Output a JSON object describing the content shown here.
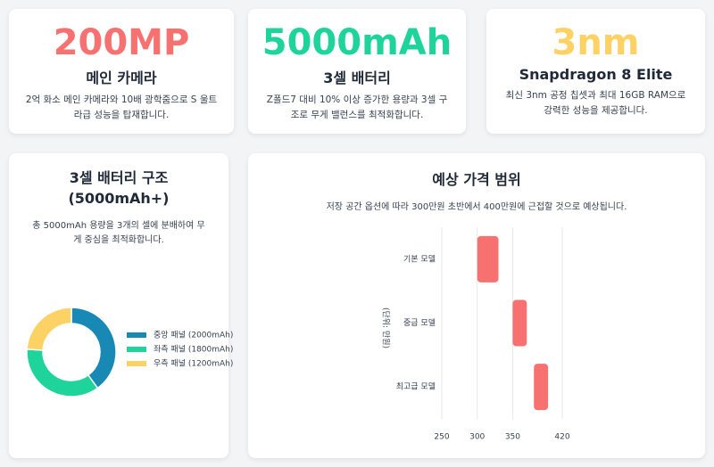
{
  "cards": [
    {
      "stat": "200MP",
      "title": "메인 카메라",
      "description": "2억 화소 메인 카메라와 10배 광학줌으로 S 울트라급 성능을 탑재합니다.",
      "color": "#f87171"
    },
    {
      "stat": "5000mAh",
      "title": "3셀 배터리",
      "description": "Z폴드7 대비 10% 이상 증가한 용량과 3셀 구조로 무게 밸런스를 최적화합니다.",
      "color": "#1ed49b"
    },
    {
      "stat": "3nm",
      "title": "Snapdragon 8 Elite",
      "description": "최신 3nm 공정 칩셋과 최대 16GB RAM으로 강력한 성능을 제공합니다.",
      "color": "#fcd265"
    }
  ],
  "chart_data": [
    {
      "type": "donut",
      "title": "3셀 배터리 구조 (5000mAh+)",
      "subtitle": "총 5000mAh 용량을 3개의 셀에 분배하여 무게 중심을 최적화합니다.",
      "categories": [
        "중앙 패널 (2000mAh)",
        "좌측 패널 (1800mAh)",
        "우측 패널 (1200mAh)"
      ],
      "values": [
        2000,
        1800,
        1200
      ],
      "colors": [
        "#1889b4",
        "#1ed49b",
        "#fcd265"
      ]
    },
    {
      "type": "floating-bar",
      "title": "예상 가격 범위",
      "subtitle": "저장 공간 옵션에 따라 300만원 초반에서 400만원에 근접할 것으로 예상됩니다.",
      "categories": [
        "기본 모델",
        "중급 모델",
        "최고급 모델"
      ],
      "values": [
        [
          300,
          330
        ],
        [
          350,
          370
        ],
        [
          380,
          400
        ]
      ],
      "color": "#f87171",
      "y_label": "(단위: 만원)",
      "xlim": [
        250,
        420
      ],
      "xticks": [
        250,
        300,
        350,
        420
      ],
      "grid": true
    }
  ]
}
